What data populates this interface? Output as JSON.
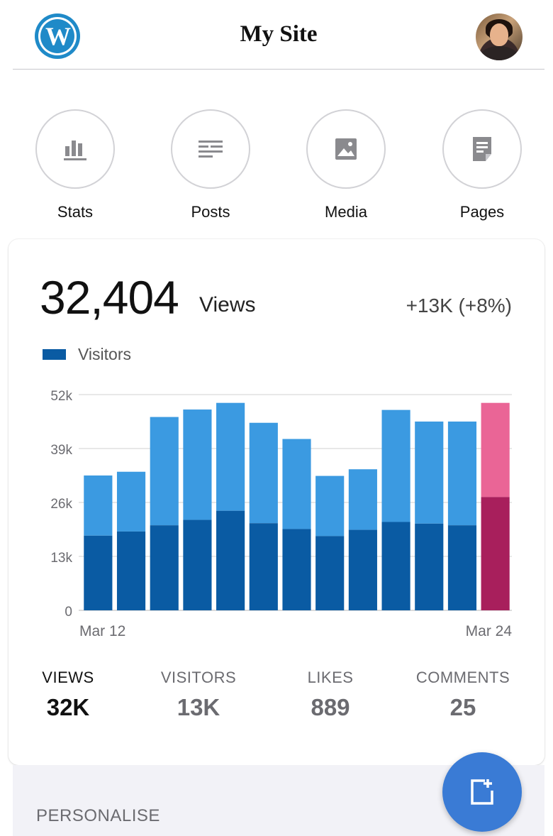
{
  "header": {
    "title": "My Site",
    "logo_icon": "wordpress-logo-icon",
    "avatar_icon": "user-avatar"
  },
  "actions": [
    {
      "label": "Stats",
      "icon": "stats-icon"
    },
    {
      "label": "Posts",
      "icon": "posts-icon"
    },
    {
      "label": "Media",
      "icon": "media-icon"
    },
    {
      "label": "Pages",
      "icon": "pages-icon"
    }
  ],
  "card": {
    "views_value": "32,404",
    "views_word": "Views",
    "change": "+13K (+8%)",
    "legend_label": "Visitors"
  },
  "chart_data": {
    "type": "bar",
    "stacked": true,
    "categories": [
      "Mar 12",
      "",
      "",
      "",
      "",
      "",
      "",
      "",
      "",
      "",
      "",
      "",
      "Mar 24"
    ],
    "x_labels": [
      "Mar 12",
      "Mar 24"
    ],
    "series": [
      {
        "name": "Visitors",
        "values": [
          18000,
          19000,
          20500,
          21800,
          24000,
          21000,
          19600,
          17900,
          19400,
          21300,
          20900,
          20500,
          27300
        ]
      },
      {
        "values": [
          14500,
          14400,
          26100,
          26600,
          26000,
          24200,
          21700,
          14500,
          14600,
          27000,
          24600,
          25000,
          22700
        ]
      }
    ],
    "highlight_index": 12,
    "colors": {
      "visitors": "#0a5ba3",
      "views": "#3b9ae1",
      "visitors_highlight": "#a81f5c",
      "views_highlight": "#ea6596",
      "grid": "#e0e0e0"
    },
    "ylim": [
      0,
      52000
    ],
    "yticks": [
      "0",
      "13k",
      "26k",
      "39k",
      "52k"
    ],
    "ytick_values": [
      0,
      13000,
      26000,
      39000,
      52000
    ],
    "legend": "top-left",
    "grid": true
  },
  "summary": [
    {
      "label": "VIEWS",
      "value": "32K",
      "active": true
    },
    {
      "label": "VISITORS",
      "value": "13K",
      "active": false
    },
    {
      "label": "LIKES",
      "value": "889",
      "active": false
    },
    {
      "label": "COMMENTS",
      "value": "25",
      "active": false
    }
  ],
  "lower": {
    "section_title": "PERSONALISE"
  },
  "fab": {
    "icon": "new-post-icon"
  }
}
